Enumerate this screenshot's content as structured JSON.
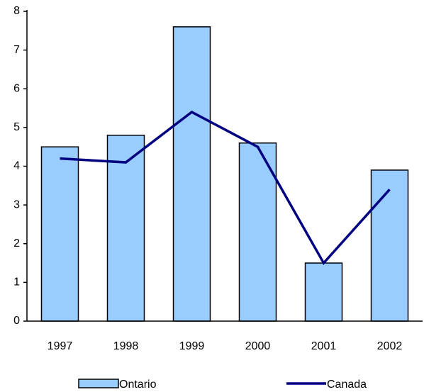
{
  "chart_data": {
    "type": "bar",
    "categories": [
      "1997",
      "1998",
      "1999",
      "2000",
      "2001",
      "2002"
    ],
    "series": [
      {
        "name": "Ontario",
        "type": "bar",
        "values": [
          4.5,
          4.8,
          7.6,
          4.6,
          1.5,
          3.9
        ],
        "color": "#99ccff",
        "stroke": "#000000"
      },
      {
        "name": "Canada",
        "type": "line",
        "values": [
          4.2,
          4.1,
          5.4,
          4.5,
          1.5,
          3.4
        ],
        "color": "#000080"
      }
    ],
    "yticks": [
      "0",
      "1",
      "2",
      "3",
      "4",
      "5",
      "6",
      "7",
      "8"
    ],
    "ylim": [
      0,
      8
    ],
    "title": "",
    "xlabel": "",
    "ylabel": "",
    "grid": false,
    "legend_position": "bottom"
  }
}
